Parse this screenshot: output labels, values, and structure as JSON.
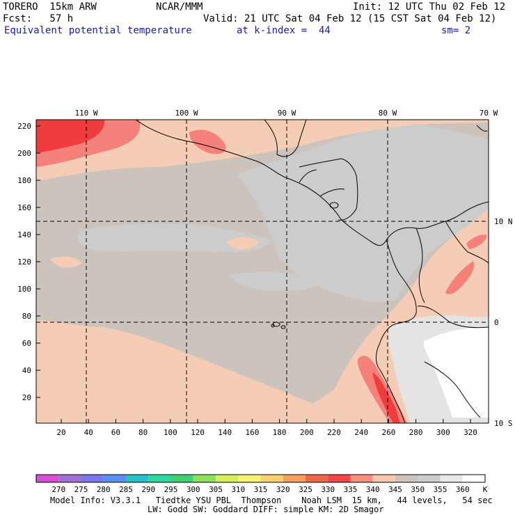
{
  "header": {
    "model_name": "TORERO  15km ARW",
    "center": "NCAR/MMM",
    "init": "Init: 12 UTC Thu 02 Feb 12",
    "fcst": "Fcst:   57 h",
    "valid": "Valid: 21 UTC Sat 04 Feb 12 (15 CST Sat 04 Feb 12)",
    "field_name": "Equivalent potential temperature",
    "level": "at k-index =  44",
    "smoothing": "sm= 2"
  },
  "map": {
    "top_lon_labels": [
      "110 W",
      "100 W",
      "90 W",
      "80 W",
      "70 W"
    ],
    "right_lat_labels": [
      "10 N",
      "0",
      "10 S"
    ],
    "y_ticks": [
      "220",
      "200",
      "180",
      "160",
      "140",
      "120",
      "100",
      "80",
      "60",
      "40",
      "20"
    ],
    "x_ticks": [
      "20",
      "40",
      "60",
      "80",
      "100",
      "120",
      "140",
      "160",
      "180",
      "200",
      "220",
      "240",
      "260",
      "280",
      "300",
      "320"
    ],
    "colors": {
      "c335": "#f5827a",
      "c340": "#f5ccb5",
      "c345": "#cdc3bd",
      "c350": "#cccccc",
      "c355": "#e4e4e4",
      "c360": "#ffffff",
      "warm_red": "#f03c3c"
    }
  },
  "colorbar": {
    "labels": [
      "270",
      "275",
      "280",
      "285",
      "290",
      "295",
      "300",
      "305",
      "310",
      "315",
      "320",
      "325",
      "330",
      "335",
      "340",
      "345",
      "350",
      "355",
      "360"
    ],
    "unit": "K",
    "colors": [
      "#d44fd4",
      "#a070d8",
      "#7a78e8",
      "#5a8ef0",
      "#2ac0c8",
      "#30d8a0",
      "#44d070",
      "#90e060",
      "#d8f060",
      "#f8f070",
      "#f8d070",
      "#f8a060",
      "#f06848",
      "#f04848",
      "#f89080",
      "#f8c8b0",
      "#cdc3bd",
      "#cccccc",
      "#e8e8e8",
      "#ffffff"
    ]
  },
  "footer": {
    "line1": "Model Info: V3.3.1   Tiedtke YSU PBL  Thompson    Noah LSM  15 km,   44 levels,   54 sec",
    "line2": "LW: Godd SW: Goddard DIFF: simple KM: 2D Smagor"
  }
}
